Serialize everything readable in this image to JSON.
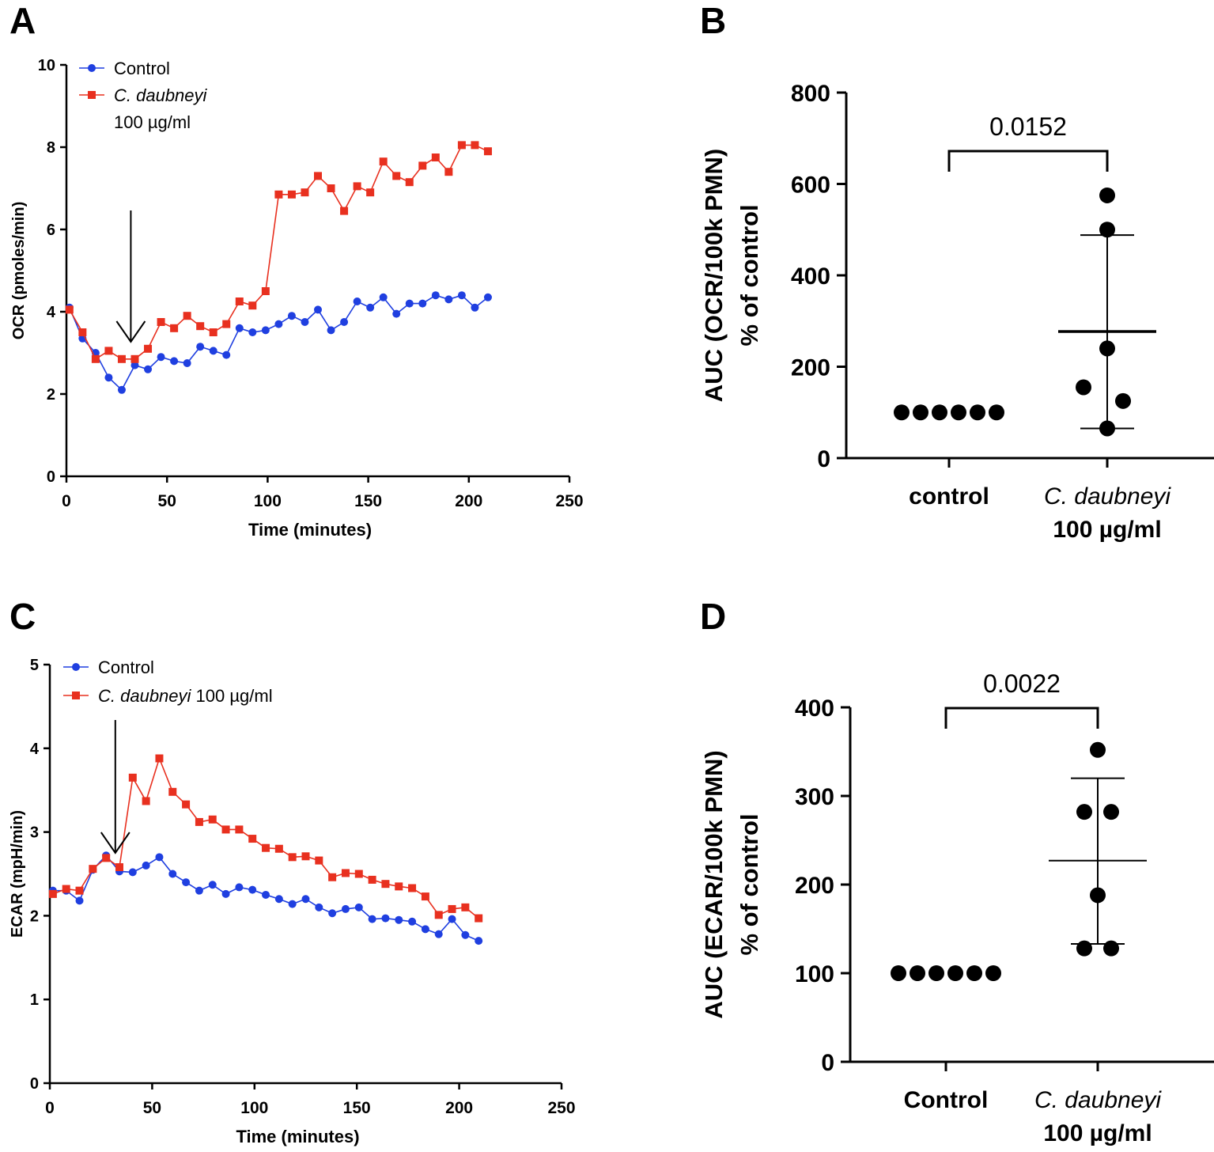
{
  "panels": {
    "a": "A",
    "b": "B",
    "c": "C",
    "d": "D"
  },
  "colors": {
    "control": "#1f3fe0",
    "treated": "#e8301f",
    "black": "#000000"
  },
  "chart_data": [
    {
      "id": "A",
      "type": "line",
      "xlabel": "Time (minutes)",
      "ylabel": "OCR (pmoles/min)",
      "xlim": [
        0,
        250
      ],
      "ylim": [
        0,
        10
      ],
      "xticks": [
        0,
        50,
        100,
        150,
        200,
        250
      ],
      "yticks": [
        0,
        2,
        4,
        6,
        8,
        10
      ],
      "legend": [
        "Control",
        "C. daubneyi",
        "100 µg/ml"
      ],
      "arrow_at_x": 32,
      "series": [
        {
          "name": "Control",
          "x": [
            1.5,
            8,
            14.5,
            21,
            27.5,
            34,
            40.5,
            47,
            53.5,
            60,
            66.5,
            73,
            79.5,
            86,
            92.5,
            99,
            105.5,
            112,
            118.5,
            125,
            131.5,
            138,
            144.5,
            151,
            157.5,
            164,
            170.5,
            177,
            183.5,
            190,
            196.5,
            203,
            209.5
          ],
          "values": [
            4.1,
            3.35,
            3.0,
            2.4,
            2.1,
            2.7,
            2.6,
            2.9,
            2.8,
            2.75,
            3.15,
            3.05,
            2.95,
            3.6,
            3.5,
            3.55,
            3.7,
            3.9,
            3.75,
            4.05,
            3.55,
            3.75,
            4.25,
            4.1,
            4.35,
            3.95,
            4.2,
            4.2,
            4.4,
            4.3,
            4.4,
            4.1,
            4.35
          ]
        },
        {
          "name": "C. daubneyi 100 µg/ml",
          "x": [
            1.5,
            8,
            14.5,
            21,
            27.5,
            34,
            40.5,
            47,
            53.5,
            60,
            66.5,
            73,
            79.5,
            86,
            92.5,
            99,
            105.5,
            112,
            118.5,
            125,
            131.5,
            138,
            144.5,
            151,
            157.5,
            164,
            170.5,
            177,
            183.5,
            190,
            196.5,
            203,
            209.5
          ],
          "values": [
            4.05,
            3.5,
            2.85,
            3.05,
            2.85,
            2.85,
            3.1,
            3.75,
            3.6,
            3.9,
            3.65,
            3.5,
            3.7,
            4.25,
            4.15,
            4.5,
            6.85,
            6.85,
            6.9,
            7.3,
            7.0,
            6.45,
            7.05,
            6.9,
            7.65,
            7.3,
            7.15,
            7.55,
            7.75,
            7.4,
            8.05,
            8.05,
            7.9
          ]
        }
      ]
    },
    {
      "id": "B",
      "type": "scatter",
      "ylabel": [
        "AUC (OCR/100k PMN)",
        "% of control"
      ],
      "ylim": [
        0,
        800
      ],
      "yticks": [
        0,
        200,
        400,
        600,
        800
      ],
      "categories": [
        "control",
        "C. daubneyi",
        "100 µg/ml"
      ],
      "groups": [
        {
          "name": "control",
          "values": [
            100,
            100,
            100,
            100,
            100,
            100
          ]
        },
        {
          "name": "C. daubneyi 100 µg/ml",
          "values": [
            575,
            500,
            240,
            155,
            125,
            65
          ],
          "mean": 277,
          "sd_low": 65,
          "sd_high": 488
        }
      ],
      "p_value": "0.0152"
    },
    {
      "id": "C",
      "type": "line",
      "xlabel": "Time (minutes)",
      "ylabel": "ECAR (mpH/min)",
      "xlim": [
        0,
        250
      ],
      "ylim": [
        0,
        5
      ],
      "xticks": [
        0,
        50,
        100,
        150,
        200,
        250
      ],
      "yticks": [
        0,
        1,
        2,
        3,
        4,
        5
      ],
      "legend": [
        "Control",
        "C. daubneyi",
        "100 µg/ml"
      ],
      "arrow_at_x": 32,
      "series": [
        {
          "name": "Control",
          "x": [
            1.5,
            8,
            14.5,
            21,
            27.5,
            34,
            40.5,
            47,
            53.5,
            60,
            66.5,
            73,
            79.5,
            86,
            92.5,
            99,
            105.5,
            112,
            118.5,
            125,
            131.5,
            138,
            144.5,
            151,
            157.5,
            164,
            170.5,
            177,
            183.5,
            190,
            196.5,
            203,
            209.5
          ],
          "values": [
            2.3,
            2.3,
            2.18,
            2.55,
            2.72,
            2.53,
            2.52,
            2.6,
            2.7,
            2.5,
            2.4,
            2.3,
            2.37,
            2.26,
            2.34,
            2.31,
            2.25,
            2.2,
            2.14,
            2.2,
            2.1,
            2.03,
            2.08,
            2.1,
            1.96,
            1.97,
            1.95,
            1.93,
            1.84,
            1.78,
            1.96,
            1.77,
            1.7
          ]
        },
        {
          "name": "C. daubneyi 100 µg/ml",
          "x": [
            1.5,
            8,
            14.5,
            21,
            27.5,
            34,
            40.5,
            47,
            53.5,
            60,
            66.5,
            73,
            79.5,
            86,
            92.5,
            99,
            105.5,
            112,
            118.5,
            125,
            131.5,
            138,
            144.5,
            151,
            157.5,
            164,
            170.5,
            177,
            183.5,
            190,
            196.5,
            203,
            209.5
          ],
          "values": [
            2.26,
            2.32,
            2.3,
            2.56,
            2.69,
            2.58,
            3.65,
            3.37,
            3.88,
            3.48,
            3.33,
            3.12,
            3.15,
            3.03,
            3.03,
            2.92,
            2.81,
            2.8,
            2.7,
            2.71,
            2.66,
            2.46,
            2.51,
            2.5,
            2.43,
            2.38,
            2.35,
            2.33,
            2.23,
            2.01,
            2.08,
            2.1,
            1.97
          ]
        }
      ]
    },
    {
      "id": "D",
      "type": "scatter",
      "ylabel": [
        "AUC (ECAR/100k PMN)",
        "% of control"
      ],
      "ylim": [
        0,
        400
      ],
      "yticks": [
        0,
        100,
        200,
        300,
        400
      ],
      "categories": [
        "Control",
        "C. daubneyi",
        "100 µg/ml"
      ],
      "groups": [
        {
          "name": "Control",
          "values": [
            100,
            100,
            100,
            100,
            100,
            100
          ]
        },
        {
          "name": "C. daubneyi 100 µg/ml",
          "values": [
            352,
            282,
            282,
            188,
            128,
            128
          ],
          "mean": 227,
          "sd_low": 133,
          "sd_high": 320
        }
      ],
      "p_value": "0.0022"
    }
  ]
}
